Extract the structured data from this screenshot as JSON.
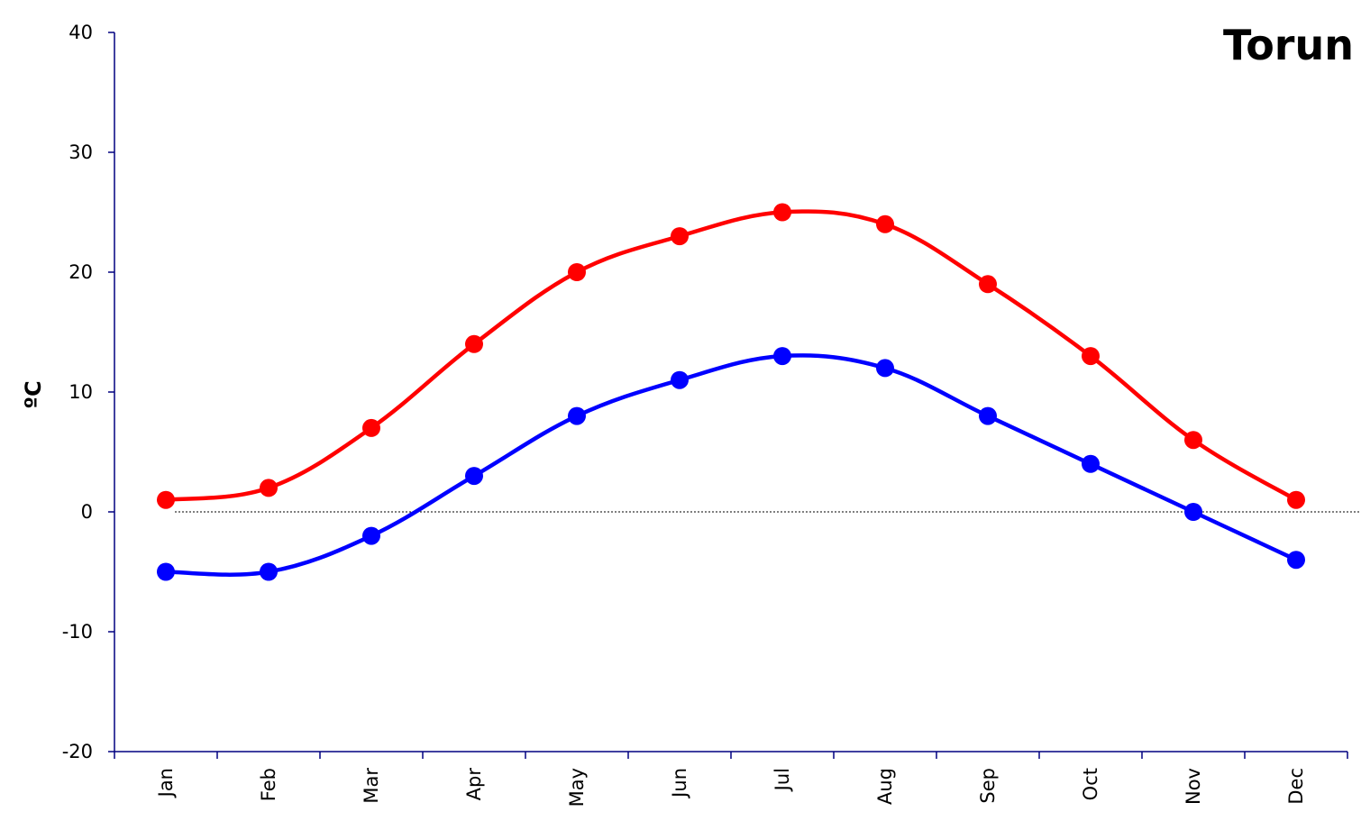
{
  "chart_data": {
    "type": "line",
    "title": "Torun",
    "xlabel": "",
    "ylabel": "ºC",
    "categories": [
      "Jan",
      "Feb",
      "Mar",
      "Apr",
      "May",
      "Jun",
      "Jul",
      "Aug",
      "Sep",
      "Oct",
      "Nov",
      "Dec"
    ],
    "ylim": [
      -20,
      40
    ],
    "yticks": [
      -20,
      -10,
      0,
      10,
      20,
      30,
      40
    ],
    "grid": false,
    "zero_line": "dotted",
    "series": [
      {
        "color": "#ff0000",
        "values": [
          1,
          2,
          7,
          14,
          20,
          23,
          25,
          24,
          19,
          13,
          6,
          1
        ]
      },
      {
        "color": "#0000ff",
        "values": [
          -5,
          -5,
          -2,
          3,
          8,
          11,
          13,
          12,
          8,
          4,
          0,
          -4
        ]
      }
    ],
    "axis_color": "#000080"
  }
}
